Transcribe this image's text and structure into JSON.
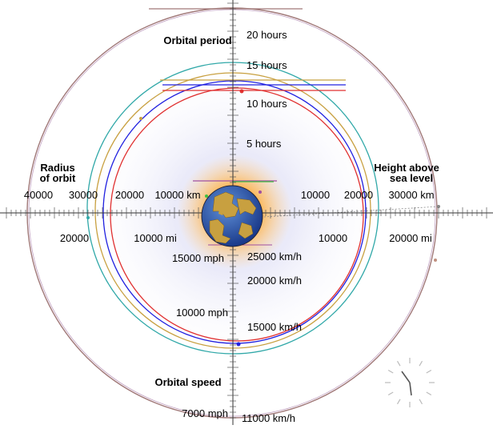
{
  "headings": {
    "orbital_period": "Orbital period",
    "radius_line1": "Radius",
    "radius_line2": "of orbit",
    "height_line1": "Height above",
    "height_line2": "sea level",
    "orbital_speed": "Orbital speed"
  },
  "period_labels": [
    "20 hours",
    "15 hours",
    "10 hours",
    "5 hours"
  ],
  "radius_km_labels": [
    "40000",
    "30000",
    "20000",
    "10000 km"
  ],
  "height_km_labels": [
    "10000",
    "20000",
    "30000 km"
  ],
  "radius_mi_labels": [
    "20000",
    "10000 mi"
  ],
  "height_mi_labels": [
    "10000",
    "20000 mi"
  ],
  "speed_mph_labels": [
    "15000 mph",
    "10000 mph",
    "7000 mph"
  ],
  "speed_kmh_labels": [
    "25000 km/h",
    "20000 km/h",
    "15000 km/h",
    "11000 km/h"
  ],
  "orbit_colors": {
    "outer": "#a07878",
    "teal": "#30a8a8",
    "gold": "#c8a040",
    "blue": "#2020e0",
    "red": "#e03030",
    "purple": "#a050a0",
    "green": "#40c040"
  },
  "icons": [
    "earth-globe-icon",
    "clock-icon"
  ]
}
